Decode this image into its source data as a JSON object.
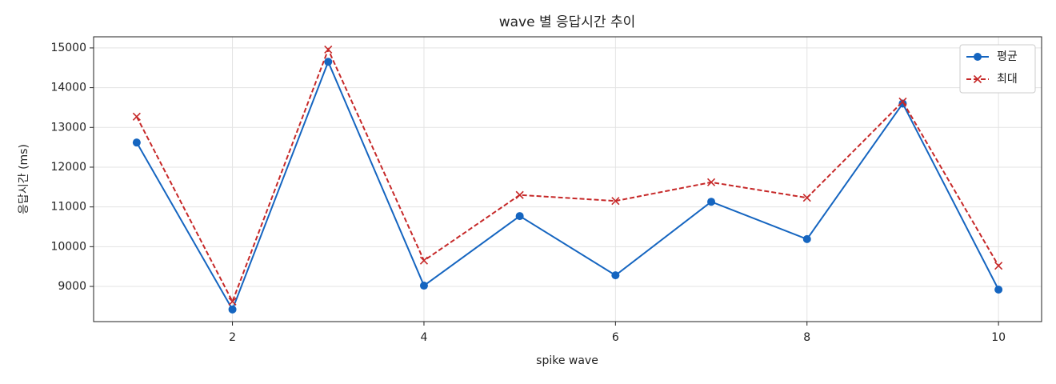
{
  "chart_data": {
    "type": "line",
    "title": "wave 별 응답시간 추이",
    "x_label": "spike wave",
    "y_label": "응답시간 (ms)",
    "x": [
      1,
      2,
      3,
      4,
      5,
      6,
      7,
      8,
      9,
      10
    ],
    "series": [
      {
        "name": "평균",
        "color": "#1565c0",
        "marker": "o",
        "linestyle": "solid",
        "values": [
          12620,
          8420,
          14650,
          9020,
          10770,
          9280,
          11130,
          10190,
          13600,
          8920
        ]
      },
      {
        "name": "최대",
        "color": "#c62828",
        "marker": "x",
        "linestyle": "dashed",
        "values": [
          13270,
          8620,
          14960,
          9650,
          11300,
          11150,
          11620,
          11230,
          13650,
          9520
        ]
      }
    ],
    "xlim": [
      0.55,
      10.45
    ],
    "xticks": [
      2,
      4,
      6,
      8,
      10
    ],
    "ylim": [
      8115,
      15280
    ],
    "yticks": [
      9000,
      10000,
      11000,
      12000,
      13000,
      14000,
      15000
    ],
    "grid": true,
    "legend": "upper right"
  }
}
